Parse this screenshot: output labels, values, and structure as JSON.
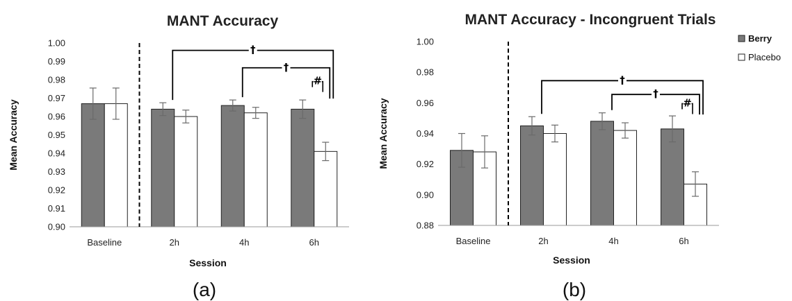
{
  "legend": {
    "items": [
      {
        "label": "Berry",
        "color": "#7a7a7a",
        "bold": true
      },
      {
        "label": "Placebo",
        "color": "#ffffff",
        "bold": false
      }
    ]
  },
  "chart_data": [
    {
      "type": "bar",
      "panel_label": "(a)",
      "title": "MANT Accuracy",
      "xlabel": "Session",
      "ylabel": "Mean Accuracy",
      "categories": [
        "Baseline",
        "2h",
        "4h",
        "6h"
      ],
      "ylim": [
        0.9,
        1.0
      ],
      "yticks": [
        "0.90",
        "0.91",
        "0.92",
        "0.93",
        "0.94",
        "0.95",
        "0.96",
        "0.97",
        "0.98",
        "0.99",
        "1.00"
      ],
      "series": [
        {
          "name": "Berry",
          "values": [
            0.967,
            0.964,
            0.966,
            0.964
          ],
          "errors": [
            0.0085,
            0.0035,
            0.003,
            0.005
          ]
        },
        {
          "name": "Placebo",
          "values": [
            0.967,
            0.96,
            0.962,
            0.941
          ],
          "errors": [
            0.0085,
            0.0035,
            0.003,
            0.005
          ]
        }
      ],
      "annotations": [
        {
          "text": "†",
          "from_category": "2h",
          "to_category": "6h",
          "level": 0.996
        },
        {
          "text": "†",
          "from_category": "4h",
          "to_category": "6h",
          "level": 0.9865
        },
        {
          "text": "#",
          "from_category": "6h",
          "to_category": "6h",
          "level": 0.979
        }
      ],
      "divider_after": "Baseline"
    },
    {
      "type": "bar",
      "panel_label": "(b)",
      "title": "MANT Accuracy - Incongruent Trials",
      "xlabel": "Session",
      "ylabel": "Mean Accuracy",
      "categories": [
        "Baseline",
        "2h",
        "4h",
        "6h"
      ],
      "ylim": [
        0.88,
        1.0
      ],
      "yticks": [
        "0.88",
        "0.90",
        "0.92",
        "0.94",
        "0.96",
        "0.98",
        "1.00"
      ],
      "series": [
        {
          "name": "Berry",
          "values": [
            0.929,
            0.945,
            0.948,
            0.943
          ],
          "errors": [
            0.011,
            0.006,
            0.0055,
            0.0085
          ]
        },
        {
          "name": "Placebo",
          "values": [
            0.928,
            0.94,
            0.942,
            0.907
          ],
          "errors": [
            0.0105,
            0.0055,
            0.005,
            0.008
          ]
        }
      ],
      "annotations": [
        {
          "text": "†",
          "from_category": "2h",
          "to_category": "6h",
          "level": 0.9745
        },
        {
          "text": "†",
          "from_category": "4h",
          "to_category": "6h",
          "level": 0.9655
        },
        {
          "text": "#",
          "from_category": "6h",
          "to_category": "6h",
          "level": 0.9595
        }
      ],
      "divider_after": "Baseline"
    }
  ]
}
